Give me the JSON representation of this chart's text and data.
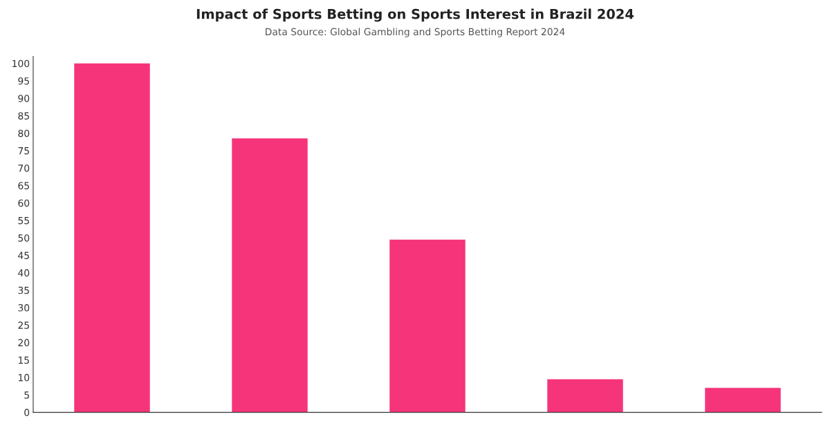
{
  "chart_data": {
    "type": "bar",
    "title": "Impact of Sports Betting on Sports Interest in Brazil 2024",
    "subtitle": "Data Source: Global Gambling and Sports Betting Report 2024",
    "categories": [
      null,
      null,
      null,
      null,
      null
    ],
    "values": [
      100,
      78.5,
      49.5,
      9.5,
      7
    ],
    "color": "#f5347a",
    "ylim": [
      0,
      102
    ],
    "yticks": [
      0,
      5,
      10,
      15,
      20,
      25,
      30,
      35,
      40,
      45,
      50,
      55,
      60,
      65,
      70,
      75,
      80,
      85,
      90,
      95,
      100
    ],
    "grid": false,
    "legend": false
  }
}
